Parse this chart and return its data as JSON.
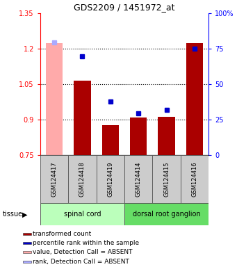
{
  "title": "GDS2209 / 1451972_at",
  "samples": [
    "GSM124417",
    "GSM124418",
    "GSM124419",
    "GSM124414",
    "GSM124415",
    "GSM124416"
  ],
  "bar_values": [
    1.225,
    1.065,
    0.875,
    0.908,
    0.912,
    1.225
  ],
  "bar_absent": [
    true,
    false,
    false,
    false,
    false,
    false
  ],
  "rank_values": [
    0.793,
    0.698,
    0.375,
    0.295,
    0.32,
    0.75
  ],
  "rank_absent": [
    true,
    false,
    false,
    false,
    false,
    false
  ],
  "ylim_left": [
    0.75,
    1.35
  ],
  "ylim_right": [
    0,
    100
  ],
  "yticks_left": [
    0.75,
    0.9,
    1.05,
    1.2,
    1.35
  ],
  "yticks_right": [
    0,
    25,
    50,
    75,
    100
  ],
  "ytick_labels_right": [
    "0",
    "25",
    "50",
    "75",
    "100%"
  ],
  "bar_color_present": "#aa0000",
  "bar_color_absent": "#ffaaaa",
  "rank_color_present": "#0000cc",
  "rank_color_absent": "#aaaaff",
  "baseline": 0.75,
  "tissues": [
    {
      "label": "spinal cord",
      "start": 0,
      "end": 2,
      "color": "#bbffbb"
    },
    {
      "label": "dorsal root ganglion",
      "start": 3,
      "end": 5,
      "color": "#66dd66"
    }
  ],
  "tissue_label": "tissue",
  "legend_items": [
    {
      "label": "transformed count",
      "color": "#aa0000"
    },
    {
      "label": "percentile rank within the sample",
      "color": "#0000cc"
    },
    {
      "label": "value, Detection Call = ABSENT",
      "color": "#ffaaaa"
    },
    {
      "label": "rank, Detection Call = ABSENT",
      "color": "#aaaaff"
    }
  ]
}
